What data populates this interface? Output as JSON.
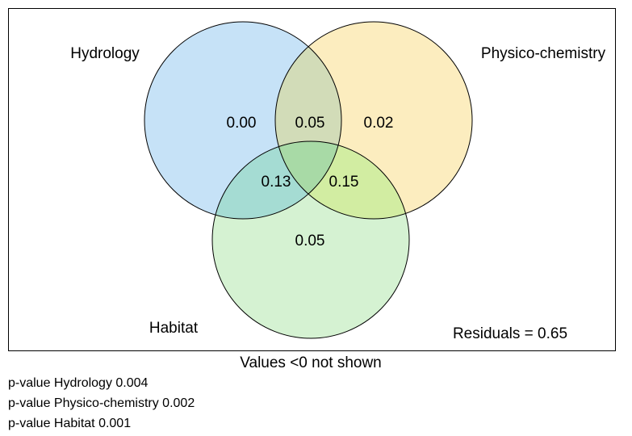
{
  "venn": {
    "sets": [
      {
        "label": "Hydrology",
        "color": "#c6e2f7"
      },
      {
        "label": "Physico-chemistry",
        "color": "#fcedbf"
      },
      {
        "label": "Habitat",
        "color": "#d5f2d2"
      }
    ],
    "overlap_colors": {
      "hydrology_physico": "#d2dcb8",
      "hydrology_habitat": "#a5dcd3",
      "physico_habitat": "#d2eda2",
      "all_three": "#a8daa6"
    },
    "border_color": "#000000",
    "values": {
      "hydrology_only": "0.00",
      "hydrology_physico": "0.05",
      "physico_only": "0.02",
      "hydrology_habitat": "0.13",
      "physico_habitat": "0.15",
      "habitat_only": "0.05"
    },
    "residuals": "Residuals = 0.65",
    "caption": "Values <0 not shown"
  },
  "notes": [
    "p-value Hydrology 0.004",
    "p-value Physico-chemistry 0.002",
    "p-value Habitat 0.001"
  ]
}
